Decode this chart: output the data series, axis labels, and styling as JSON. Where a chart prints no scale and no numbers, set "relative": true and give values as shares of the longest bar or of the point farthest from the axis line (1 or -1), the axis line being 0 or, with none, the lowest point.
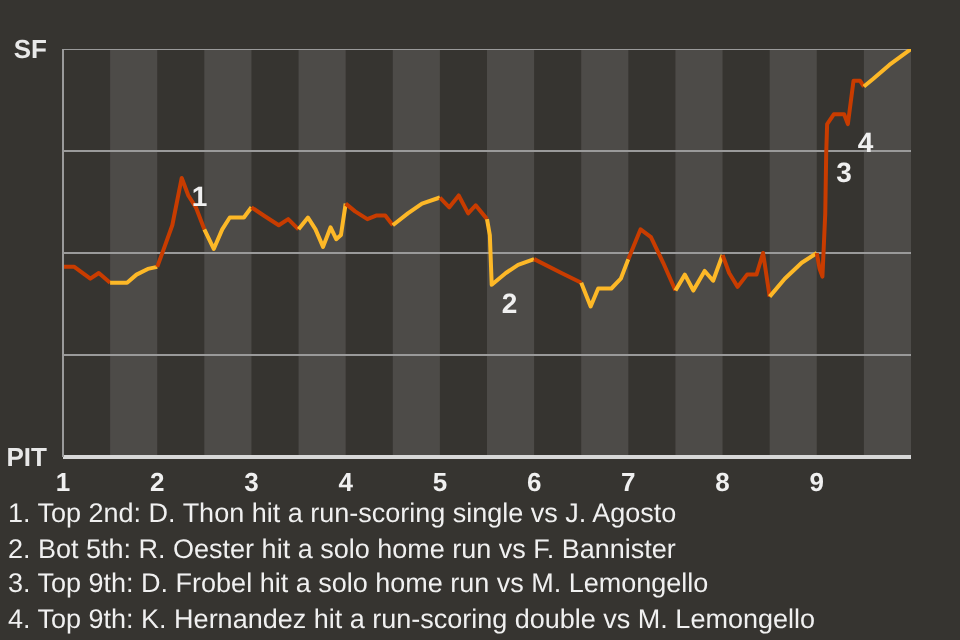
{
  "chart_data": {
    "type": "line",
    "relative": true,
    "series": [
      {
        "color": "#c83c00",
        "x": [
          1.0,
          1.12,
          1.29,
          1.38,
          1.5
        ],
        "values": [
          0.466,
          0.466,
          0.437,
          0.451,
          0.427
        ]
      },
      {
        "color": "#fdb827",
        "x": [
          1.5,
          1.68,
          1.78,
          1.9,
          2.0
        ],
        "values": [
          0.427,
          0.427,
          0.447,
          0.461,
          0.466
        ]
      },
      {
        "color": "#c83c00",
        "x": [
          2.0,
          2.07,
          2.16,
          2.26,
          2.33,
          2.41,
          2.5
        ],
        "values": [
          0.466,
          0.51,
          0.568,
          0.684,
          0.641,
          0.612,
          0.558
        ]
      },
      {
        "color": "#fdb827",
        "x": [
          2.5,
          2.6,
          2.69,
          2.77,
          2.92,
          3.0
        ],
        "values": [
          0.558,
          0.51,
          0.558,
          0.587,
          0.587,
          0.612
        ]
      },
      {
        "color": "#c83c00",
        "x": [
          3.0,
          3.13,
          3.29,
          3.39,
          3.5
        ],
        "values": [
          0.612,
          0.592,
          0.568,
          0.583,
          0.558
        ]
      },
      {
        "color": "#fdb827",
        "x": [
          3.5,
          3.6,
          3.68,
          3.76,
          3.84,
          3.9,
          3.95,
          4.0
        ],
        "values": [
          0.558,
          0.587,
          0.558,
          0.515,
          0.563,
          0.534,
          0.544,
          0.621
        ]
      },
      {
        "color": "#c83c00",
        "x": [
          4.0,
          4.1,
          4.23,
          4.33,
          4.42,
          4.5
        ],
        "values": [
          0.621,
          0.602,
          0.583,
          0.592,
          0.592,
          0.568
        ]
      },
      {
        "color": "#fdb827",
        "x": [
          4.5,
          4.66,
          4.81,
          5.0
        ],
        "values": [
          0.568,
          0.597,
          0.621,
          0.636
        ]
      },
      {
        "color": "#c83c00",
        "x": [
          5.0,
          5.1,
          5.2,
          5.3,
          5.38,
          5.5
        ],
        "values": [
          0.636,
          0.612,
          0.641,
          0.597,
          0.617,
          0.583
        ]
      },
      {
        "color": "#fdb827",
        "x": [
          5.5,
          5.53,
          5.55,
          5.7,
          5.83,
          6.0
        ],
        "values": [
          0.583,
          0.544,
          0.422,
          0.451,
          0.471,
          0.485
        ]
      },
      {
        "color": "#c83c00",
        "x": [
          6.0,
          6.29,
          6.5
        ],
        "values": [
          0.485,
          0.451,
          0.427
        ]
      },
      {
        "color": "#fdb827",
        "x": [
          6.5,
          6.6,
          6.68,
          6.82,
          6.92,
          7.0
        ],
        "values": [
          0.427,
          0.369,
          0.413,
          0.413,
          0.437,
          0.485
        ]
      },
      {
        "color": "#c83c00",
        "x": [
          7.0,
          7.13,
          7.24,
          7.37,
          7.5
        ],
        "values": [
          0.485,
          0.558,
          0.539,
          0.476,
          0.408
        ]
      },
      {
        "color": "#fdb827",
        "x": [
          7.5,
          7.6,
          7.69,
          7.81,
          7.9,
          8.0
        ],
        "values": [
          0.408,
          0.447,
          0.408,
          0.456,
          0.432,
          0.495
        ]
      },
      {
        "color": "#c83c00",
        "x": [
          8.0,
          8.07,
          8.16,
          8.26,
          8.36,
          8.43,
          8.5
        ],
        "values": [
          0.495,
          0.451,
          0.417,
          0.447,
          0.447,
          0.5,
          0.393
        ]
      },
      {
        "color": "#fdb827",
        "x": [
          8.5,
          8.66,
          8.84,
          9.0
        ],
        "values": [
          0.393,
          0.437,
          0.476,
          0.5
        ]
      },
      {
        "color": "#c83c00",
        "x": [
          9.0,
          9.03,
          9.06,
          9.09,
          9.1,
          9.11,
          9.18,
          9.29,
          9.33,
          9.39,
          9.46,
          9.5
        ],
        "values": [
          0.5,
          0.461,
          0.442,
          0.597,
          0.743,
          0.816,
          0.84,
          0.84,
          0.816,
          0.922,
          0.922,
          0.908
        ]
      },
      {
        "color": "#fdb827",
        "x": [
          9.5,
          9.6,
          9.77,
          10.0
        ],
        "values": [
          0.908,
          0.927,
          0.961,
          1.0
        ]
      }
    ],
    "xlim": [
      1,
      10
    ],
    "xticks": [
      1,
      2,
      3,
      4,
      5,
      6,
      7,
      8,
      9
    ],
    "grid": "y",
    "bands": [
      {
        "axis": "x",
        "from": 1.5,
        "to": 2,
        "color": "#4d4b48"
      },
      {
        "axis": "x",
        "from": 2.5,
        "to": 3,
        "color": "#4d4b48"
      },
      {
        "axis": "x",
        "from": 3.5,
        "to": 4,
        "color": "#4d4b48"
      },
      {
        "axis": "x",
        "from": 4.5,
        "to": 5,
        "color": "#4d4b48"
      },
      {
        "axis": "x",
        "from": 5.5,
        "to": 6,
        "color": "#4d4b48"
      },
      {
        "axis": "x",
        "from": 6.5,
        "to": 7,
        "color": "#4d4b48"
      },
      {
        "axis": "x",
        "from": 7.5,
        "to": 8,
        "color": "#4d4b48"
      },
      {
        "axis": "x",
        "from": 8.5,
        "to": 9,
        "color": "#4d4b48"
      },
      {
        "axis": "x",
        "from": 9.5,
        "to": 10,
        "color": "#4d4b48"
      }
    ],
    "annotations": [
      "SF",
      "PIT",
      {
        "text": "1",
        "x": 2.26,
        "y": 0.684
      },
      {
        "text": "2",
        "x": 5.55,
        "y": 0.422
      },
      {
        "text": "3",
        "x": 9.1,
        "y": 0.743
      },
      {
        "text": "4",
        "x": 9.33,
        "y": 0.816
      },
      "1. Top 2nd: D. Thon hit a run-scoring single vs J. Agosto",
      "2. Bot 5th: R. Oester hit a solo home run vs F. Bannister",
      "3. Top 9th: D. Frobel hit a solo home run vs M. Lemongello",
      "4. Top 9th: K. Hernandez hit a run-scoring double vs M. Lemongello"
    ]
  }
}
